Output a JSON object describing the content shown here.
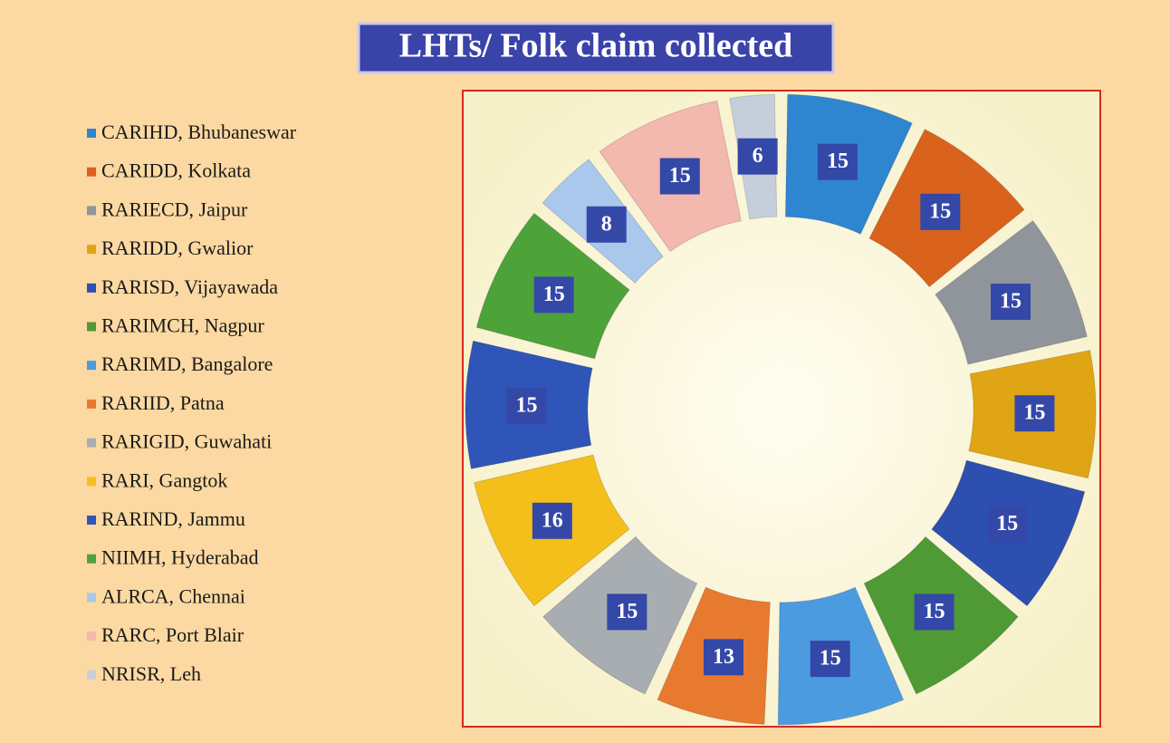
{
  "chart_data": {
    "type": "donut",
    "title": "LHTs/ Folk claim collected",
    "categories": [
      "CARIHD, Bhubaneswar",
      "CARIDD, Kolkata",
      "RARIECD, Jaipur",
      "RARIDD, Gwalior",
      "RARISD, Vijayawada",
      "RARIMCH, Nagpur",
      "RARIMD, Bangalore",
      "RARIID, Patna",
      "RARIGID, Guwahati",
      "RARI, Gangtok",
      "RARIND, Jammu",
      "NIIMH, Hyderabad",
      "ALRCA, Chennai",
      "RARC, Port Blair",
      "NRISR, Leh"
    ],
    "values": [
      15,
      15,
      15,
      15,
      15,
      15,
      15,
      13,
      15,
      16,
      15,
      15,
      8,
      15,
      6
    ],
    "colors": [
      "#2e86d0",
      "#d9621c",
      "#8f959b",
      "#e0a514",
      "#2c4fb0",
      "#4f9a35",
      "#4c9be0",
      "#e87a2f",
      "#a8adb2",
      "#f4bf1a",
      "#2f55b8",
      "#4ea23a",
      "#a9c8ec",
      "#f3b8ae",
      "#c5cfdb"
    ],
    "legend": "left"
  }
}
